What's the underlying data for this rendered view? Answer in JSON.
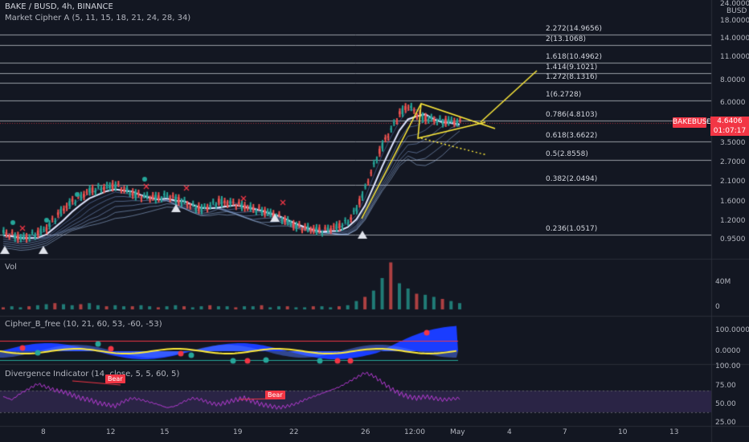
{
  "header": {
    "symbol": "BAKE / BUSD, 4h, BINANCE",
    "indicator": "Market Cipher A (5, 11, 15, 18, 21, 24, 28, 34)"
  },
  "price_axis": {
    "top_value": "24.0000",
    "currency": "BUSD",
    "ticks": [
      "18.0000",
      "14.0000",
      "11.0000",
      "8.0000",
      "6.0000",
      "3.5000",
      "2.7000",
      "2.1000",
      "1.6000",
      "1.2000",
      "0.9500"
    ],
    "badge": "BAKEBUSD",
    "last_price": "4.6406",
    "countdown": "01:07:17"
  },
  "fib_levels": [
    {
      "label": "2.272(14.9656)",
      "value": 14.9656
    },
    {
      "label": "2(13.1068)",
      "value": 13.1068
    },
    {
      "label": "1.618(10.4962)",
      "value": 10.4962
    },
    {
      "label": "1.414(9.1021)",
      "value": 9.1021
    },
    {
      "label": "1.272(8.1316)",
      "value": 8.1316
    },
    {
      "label": "1(6.2728)",
      "value": 6.2728
    },
    {
      "label": "0.786(4.8103)",
      "value": 4.8103
    },
    {
      "label": "0.618(3.6622)",
      "value": 3.6622
    },
    {
      "label": "0.5(2.8558)",
      "value": 2.8558
    },
    {
      "label": "0.382(2.0494)",
      "value": 2.0494
    },
    {
      "label": "0.236(1.0517)",
      "value": 1.0517
    }
  ],
  "volume_pane": {
    "title": "Vol",
    "ticks": [
      "40M",
      "0"
    ]
  },
  "cipher_pane": {
    "title": "Cipher_B_free (10, 21, 60, 53, -60, -53)",
    "ticks": [
      "100.0000",
      "0.0000"
    ]
  },
  "divergence_pane": {
    "title": "Divergence Indicator (14, close, 5, 5, 60, 5)",
    "ticks": [
      "100.00",
      "75.00",
      "50.00",
      "25.00"
    ],
    "bear_label_1": "Bear",
    "bear_label_2": "Bear"
  },
  "time_axis": [
    "8",
    "8",
    "12",
    "15",
    "19",
    "22",
    "26",
    "12:00",
    "May",
    "4",
    "7",
    "10",
    "13"
  ],
  "colors": {
    "background": "#131722",
    "up": "#26a69a",
    "down": "#ef5350",
    "accent": "#f23645",
    "ribbon": "#4d6fae",
    "pattern": "#ffeb3b",
    "divergence": "#b83bd6",
    "cipher_wave": "#1a3dff"
  },
  "close_series": [
    1.05,
    1.02,
    0.98,
    1.0,
    1.05,
    1.12,
    1.28,
    1.45,
    1.6,
    1.72,
    1.85,
    1.9,
    1.95,
    2.0,
    1.88,
    1.78,
    1.72,
    1.7,
    1.68,
    1.74,
    1.66,
    1.58,
    1.5,
    1.45,
    1.52,
    1.6,
    1.58,
    1.55,
    1.5,
    1.45,
    1.42,
    1.36,
    1.3,
    1.22,
    1.15,
    1.12,
    1.1,
    1.08,
    1.12,
    1.15,
    1.22,
    1.45,
    1.9,
    2.6,
    3.4,
    4.2,
    5.2,
    5.8,
    5.2,
    4.9,
    4.8,
    4.7,
    4.75,
    4.64
  ],
  "volume_series": [
    2,
    3,
    2,
    3,
    4,
    5,
    6,
    5,
    4,
    5,
    6,
    4,
    3,
    4,
    3,
    3,
    4,
    3,
    2,
    3,
    4,
    3,
    2,
    3,
    4,
    3,
    3,
    2,
    3,
    3,
    4,
    2,
    3,
    3,
    2,
    2,
    3,
    3,
    2,
    3,
    4,
    8,
    12,
    18,
    30,
    45,
    25,
    20,
    15,
    14,
    12,
    10,
    8,
    6
  ],
  "divergence_series": [
    62,
    58,
    66,
    72,
    78,
    74,
    70,
    68,
    64,
    60,
    58,
    54,
    52,
    50,
    56,
    60,
    58,
    55,
    52,
    48,
    50,
    56,
    60,
    58,
    54,
    52,
    55,
    58,
    60,
    56,
    52,
    50,
    48,
    50,
    53,
    58,
    62,
    66,
    70,
    74,
    80,
    86,
    92,
    88,
    80,
    72,
    66,
    62,
    60,
    62,
    60,
    58,
    59,
    60
  ]
}
